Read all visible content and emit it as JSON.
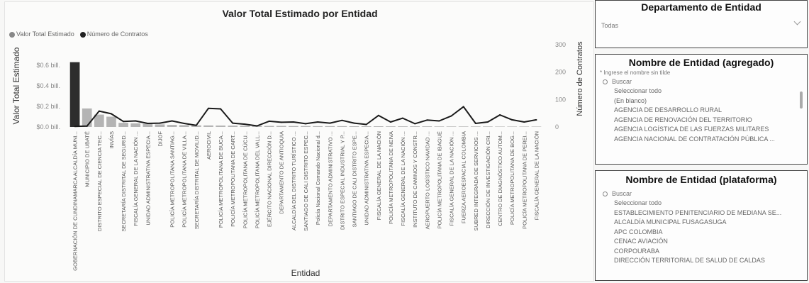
{
  "chart_data": {
    "type": "bar+line",
    "title": "Valor Total Estimado por Entidad",
    "xlabel": "Entidad",
    "ylabel": "Valor Total Estimado",
    "y2label": "Número de Contratos",
    "legend": [
      "Valor Total Estimado",
      "Número de Contratos"
    ],
    "legend_position": "top-left",
    "y_ticks": [
      "$0.0 bill.",
      "$0.2 bill.",
      "$0.4 bill.",
      "$0.6 bill."
    ],
    "y_tick_values": [
      0,
      0.2,
      0.4,
      0.6
    ],
    "ylim": [
      0,
      0.8
    ],
    "y2_ticks": [
      "0",
      "100",
      "200",
      "300"
    ],
    "y2_tick_values": [
      0,
      100,
      200,
      300
    ],
    "y2lim": [
      0,
      300
    ],
    "categories": [
      "GOBERNACIÓN DE CUNDINAMARCA ALCALDÍA MUNI...",
      "MUNICIPIO DE UBATÉ",
      "DISTRITO ESPECIAL DE CIENCIA TEC...",
      "INVÍAS",
      "SECRETARÍA DISTRITAL DE SEGURID...",
      "FISCALÍA GENERAL DE LA NACIÓN ...",
      "UNIDAD ADMINISTRATIVA ESPECIA...",
      "DIJOF",
      "POLICÍA METROPOLITANA SANTIAG...",
      "POLICÍA METROPOLITANA DE VILLA...",
      "SECRETARÍA DISTRITAL DE MOVILID...",
      "AEROCIVIL",
      "POLICÍA METROPOLITANA DE BUCA...",
      "POLICÍA METROPOLITANA DE CART...",
      "POLICÍA METROPOLITANA DE CÚCU...",
      "POLICÍA METROPOLITANA DEL VALL...",
      "EJÉRCITO NACIONAL DIRECCIÓN D...",
      "DEPARTAMENTO DE ANTIOQUIA",
      "ALCALDÍA DEL DISTRITO TURÍSTICO ...",
      "SANTIAGO DE CALI DISTRITO ESPEC...",
      "Policía Nacional Comando Nacional d...",
      "DEPARTAMENTO ADMINISTRATIVO ...",
      "DISTRITO ESPECIAL INDUSTRIAL Y P...",
      "SANTIAGO DE CALI DISTRITO ESPE...",
      "UNIDAD ADMINISTRATIVA ESPECIA...",
      "FISCALÍA GENERAL DE LA NACIÓN",
      "POLICÍA METROPOLITANA DE NEIVA",
      "FISCALÍA GENERAL DE LA NACIÓN ...",
      "INSTITUTO DE CAMINOS Y CONSTR...",
      "AEROPUERTO LOGÍSTICO NAVIDAD ...",
      "POLICÍA METROPOLITANA DE IBAGUÉ",
      "FISCALÍA GENERAL DE LA NACIÓN ...",
      "FUERZA AEROESPACIAL COLOMBIA",
      "SUBRED INTEGRADA DE SERVICIOS ...",
      "DIRECCIÓN DE INVESTIGACIÓN CRI...",
      "CENTRO DE DIAGNÓSTICO AUTOM...",
      "POLICÍA METROPOLITANA DE BOG...",
      "POLICÍA METROPOLITANA DE PEREI...",
      "FISCALÍA GENERAL DE LA NACIÓN"
    ],
    "series": [
      {
        "name": "Valor Total Estimado",
        "values": [
          0.63,
          0.18,
          0.12,
          0.1,
          0.04,
          0.035,
          0.03,
          0.025,
          0.02,
          0.018,
          0.016,
          0.015,
          0.014,
          0.013,
          0.012,
          0.011,
          0.01,
          0.01,
          0.009,
          0.009,
          0.008,
          0.008,
          0.008,
          0.007,
          0.007,
          0.007,
          0.006,
          0.006,
          0.006,
          0.006,
          0.005,
          0.005,
          0.005,
          0.005,
          0.005,
          0.004,
          0.004,
          0.004,
          0.004
        ]
      },
      {
        "name": "Número de Contratos",
        "values": [
          2,
          3,
          58,
          48,
          20,
          22,
          13,
          14,
          22,
          13,
          6,
          68,
          66,
          14,
          10,
          4,
          21,
          17,
          18,
          12,
          18,
          14,
          24,
          14,
          9,
          42,
          18,
          32,
          12,
          25,
          22,
          40,
          74,
          13,
          18,
          44,
          26,
          18,
          26
        ]
      }
    ],
    "colors": {
      "bar_top": "#2d2d2d",
      "bar_rest": "#b4b4b4",
      "line": "#1a1a1a",
      "legend_bar": "#888888",
      "legend_line": "#222222"
    }
  },
  "slicer_departamento": {
    "title": "Departamento de Entidad",
    "value": "Todas"
  },
  "slicer_nombre_agregado": {
    "title": "Nombre de Entidad (agregado)",
    "hint": "* Ingrese el nombre sin tilde",
    "search_placeholder": "Buscar",
    "items": [
      "Seleccionar todo",
      "(En blanco)",
      "AGENCIA DE DESARROLLO RURAL",
      "AGENCIA DE RENOVACIÓN DEL TERRITORIO",
      "AGENCIA LOGÍSTICA DE LAS FUERZAS MILITARES",
      "AGENCIA NACIONAL DE CONTRATACIÓN PÚBLICA ..."
    ]
  },
  "slicer_nombre_plataforma": {
    "title": "Nombre de Entidad (plataforma)",
    "search_placeholder": "Buscar",
    "items": [
      "Seleccionar todo",
      "ESTABLECIMIENTO PENITENCIARIO DE MEDIANA SE...",
      "ALCALDÍA MUNICIPAL FUSAGASUGA",
      "APC COLOMBIA",
      "CENAC AVIACIÓN",
      "CORPOURABA",
      "DIRECCIÓN TERRITORIAL DE SALUD DE CALDAS"
    ]
  }
}
